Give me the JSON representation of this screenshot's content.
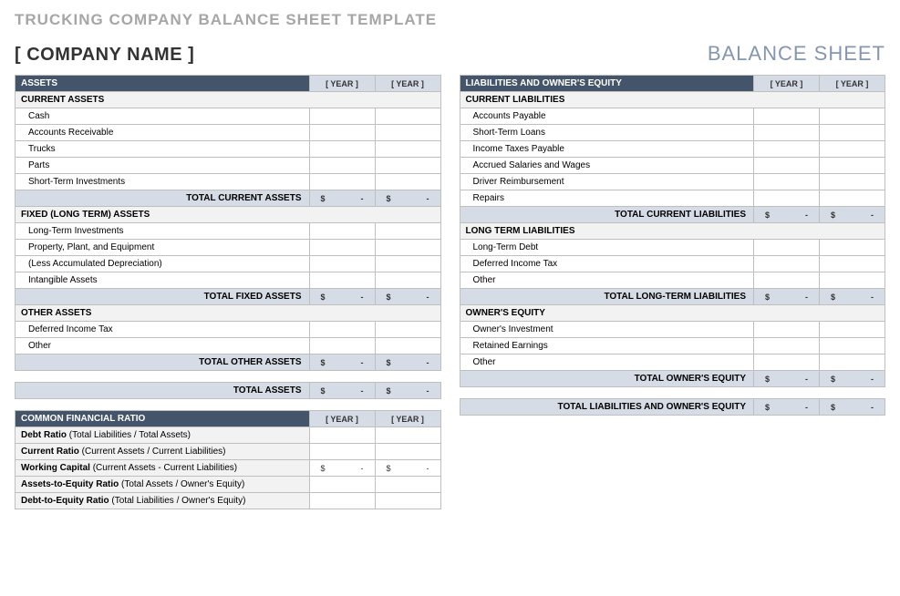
{
  "colors": {
    "header_dark": "#44546a",
    "header_text": "#ffffff",
    "subtotal_bg": "#d6dce5",
    "section_bg": "#f2f2f2",
    "border": "#bfbfbf",
    "title_gray": "#a6a6a6",
    "doc_type": "#8496b0"
  },
  "page": {
    "title": "TRUCKING COMPANY BALANCE SHEET TEMPLATE",
    "company_placeholder": "[ COMPANY NAME ]",
    "doc_type": "BALANCE SHEET"
  },
  "year_label": "[ YEAR ]",
  "dash_value": "$        -",
  "assets": {
    "header": "ASSETS",
    "sections": [
      {
        "title": "CURRENT ASSETS",
        "items": [
          "Cash",
          "Accounts Receivable",
          "Trucks",
          "Parts",
          "Short-Term Investments"
        ],
        "subtotal": "TOTAL CURRENT ASSETS"
      },
      {
        "title": "FIXED (LONG TERM) ASSETS",
        "items": [
          "Long-Term Investments",
          "Property, Plant, and Equipment",
          "(Less Accumulated Depreciation)",
          "Intangible Assets"
        ],
        "subtotal": "TOTAL FIXED ASSETS"
      },
      {
        "title": "OTHER ASSETS",
        "items": [
          "Deferred Income Tax",
          "Other"
        ],
        "subtotal": "TOTAL OTHER ASSETS"
      }
    ],
    "grand": "TOTAL ASSETS"
  },
  "liab": {
    "header": "LIABILITIES AND OWNER'S EQUITY",
    "sections": [
      {
        "title": "CURRENT LIABILITIES",
        "items": [
          "Accounts Payable",
          "Short-Term Loans",
          "Income Taxes Payable",
          "Accrued Salaries and Wages",
          "Driver Reimbursement",
          "Repairs"
        ],
        "subtotal": "TOTAL CURRENT LIABILITIES"
      },
      {
        "title": "LONG TERM LIABILITIES",
        "items": [
          "Long-Term Debt",
          "Deferred Income Tax",
          "Other"
        ],
        "subtotal": "TOTAL LONG-TERM LIABILITIES"
      },
      {
        "title": "OWNER'S EQUITY",
        "items": [
          "Owner's Investment",
          "Retained Earnings",
          "Other"
        ],
        "subtotal": "TOTAL OWNER'S EQUITY"
      }
    ],
    "grand": "TOTAL LIABILITIES AND OWNER'S EQUITY"
  },
  "ratios": {
    "header": "COMMON FINANCIAL RATIO",
    "rows": [
      {
        "bold": "Debt Ratio",
        "rest": " (Total Liabilities / Total Assets)",
        "money": false
      },
      {
        "bold": "Current Ratio",
        "rest": " (Current Assets / Current Liabilities)",
        "money": false
      },
      {
        "bold": "Working Capital",
        "rest": " (Current Assets - Current Liabilities)",
        "money": true
      },
      {
        "bold": "Assets-to-Equity Ratio",
        "rest": " (Total Assets / Owner's Equity)",
        "money": false
      },
      {
        "bold": "Debt-to-Equity Ratio",
        "rest": " (Total Liabilities / Owner's Equity)",
        "money": false
      }
    ]
  }
}
